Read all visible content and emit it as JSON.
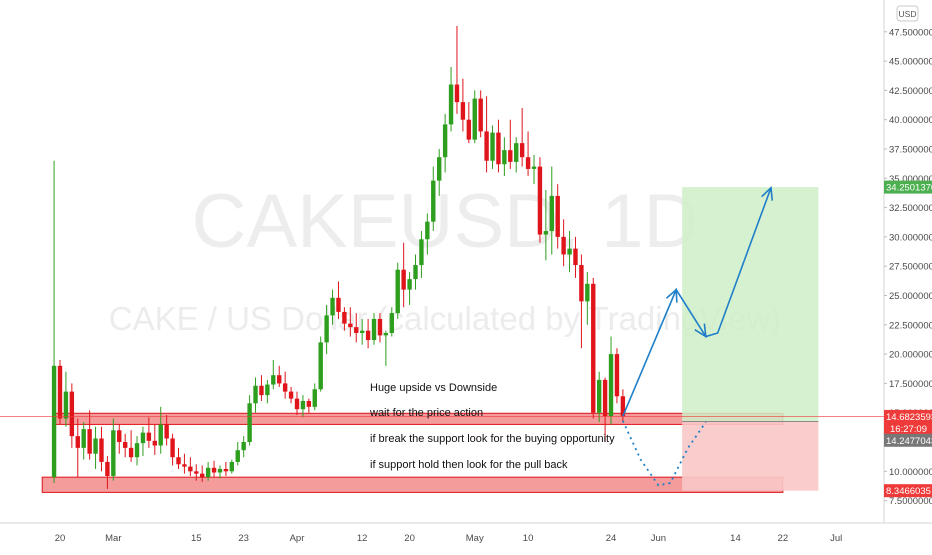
{
  "watermark": {
    "symbol": "CAKEUSD, 1D",
    "description": "CAKE / US Dollar (calculated by TradingView)"
  },
  "currency_button": "USD",
  "annotations": [
    "Huge upside vs Downside",
    "wait for the price action",
    "if break the support look for the buying opportunity",
    "if support hold then look for the pull back"
  ],
  "price_labels": {
    "target": "34.2501370",
    "last_price": "14.6823593",
    "countdown": "16:27:09",
    "entry": "14.2477043",
    "stop": "8.3466035"
  },
  "colors": {
    "up": "#2e9e1e",
    "down": "#e0141b",
    "zone_fill": "#f28a8a",
    "zone_stroke": "#e0141b",
    "profit": "#cfeec8",
    "loss": "#f9c8c8",
    "arrow": "#1f7fc8",
    "last_price_label": "#ef3a3a"
  },
  "chart_data": {
    "type": "candlestick",
    "title": "",
    "xlabel": "",
    "ylabel": "",
    "ylim": [
      6.5,
      49
    ],
    "xlim": [
      "2021-02-13",
      "2021-07-01"
    ],
    "yticks": [
      "47.5000000",
      "45.0000000",
      "42.5000000",
      "40.0000000",
      "37.5000000",
      "35.0000000",
      "32.5000000",
      "30.0000000",
      "27.5000000",
      "25.0000000",
      "22.5000000",
      "20.0000000",
      "17.5000000",
      "15.0000000",
      "12.5000000",
      "10.0000000",
      "7.5000000"
    ],
    "xticks": [
      {
        "date": "2021-02-20",
        "label": "20"
      },
      {
        "date": "2021-03-01",
        "label": "Mar"
      },
      {
        "date": "2021-03-15",
        "label": "15"
      },
      {
        "date": "2021-03-23",
        "label": "23"
      },
      {
        "date": "2021-04-01",
        "label": "Apr"
      },
      {
        "date": "2021-04-12",
        "label": "12"
      },
      {
        "date": "2021-04-20",
        "label": "20"
      },
      {
        "date": "2021-05-01",
        "label": "May"
      },
      {
        "date": "2021-05-10",
        "label": "10"
      },
      {
        "date": "2021-05-24",
        "label": "24"
      },
      {
        "date": "2021-06-01",
        "label": "Jun"
      },
      {
        "date": "2021-06-14",
        "label": "14"
      },
      {
        "date": "2021-06-22",
        "label": "22"
      },
      {
        "date": "2021-07-01",
        "label": "Jul"
      }
    ],
    "candles": [
      {
        "date": "2021-02-19",
        "o": 9.5,
        "h": 36.5,
        "l": 9.0,
        "c": 19.0
      },
      {
        "date": "2021-02-20",
        "o": 19.0,
        "h": 19.5,
        "l": 14.0,
        "c": 14.5
      },
      {
        "date": "2021-02-21",
        "o": 14.5,
        "h": 18.5,
        "l": 13.8,
        "c": 16.8
      },
      {
        "date": "2021-02-22",
        "o": 16.8,
        "h": 17.5,
        "l": 12.0,
        "c": 13.0
      },
      {
        "date": "2021-02-23",
        "o": 13.0,
        "h": 14.5,
        "l": 9.5,
        "c": 12.0
      },
      {
        "date": "2021-02-24",
        "o": 12.0,
        "h": 14.2,
        "l": 11.0,
        "c": 13.6
      },
      {
        "date": "2021-02-25",
        "o": 13.6,
        "h": 15.2,
        "l": 11.0,
        "c": 11.5
      },
      {
        "date": "2021-02-26",
        "o": 11.5,
        "h": 13.8,
        "l": 10.2,
        "c": 12.8
      },
      {
        "date": "2021-02-27",
        "o": 12.8,
        "h": 13.8,
        "l": 10.0,
        "c": 10.8
      },
      {
        "date": "2021-02-28",
        "o": 10.8,
        "h": 11.3,
        "l": 8.5,
        "c": 9.6
      },
      {
        "date": "2021-03-01",
        "o": 9.6,
        "h": 14.5,
        "l": 9.2,
        "c": 13.5
      },
      {
        "date": "2021-03-02",
        "o": 13.5,
        "h": 14.0,
        "l": 11.5,
        "c": 12.5
      },
      {
        "date": "2021-03-03",
        "o": 12.5,
        "h": 13.2,
        "l": 11.2,
        "c": 12.0
      },
      {
        "date": "2021-03-04",
        "o": 12.0,
        "h": 13.5,
        "l": 10.8,
        "c": 11.2
      },
      {
        "date": "2021-03-05",
        "o": 11.2,
        "h": 13.0,
        "l": 10.5,
        "c": 12.4
      },
      {
        "date": "2021-03-06",
        "o": 12.4,
        "h": 13.8,
        "l": 11.3,
        "c": 13.3
      },
      {
        "date": "2021-03-07",
        "o": 13.3,
        "h": 14.6,
        "l": 12.0,
        "c": 12.6
      },
      {
        "date": "2021-03-08",
        "o": 12.6,
        "h": 14.0,
        "l": 11.4,
        "c": 12.2
      },
      {
        "date": "2021-03-09",
        "o": 12.2,
        "h": 15.5,
        "l": 11.5,
        "c": 14.0
      },
      {
        "date": "2021-03-10",
        "o": 14.0,
        "h": 14.8,
        "l": 12.2,
        "c": 12.8
      },
      {
        "date": "2021-03-11",
        "o": 12.8,
        "h": 13.2,
        "l": 10.5,
        "c": 11.2
      },
      {
        "date": "2021-03-12",
        "o": 11.2,
        "h": 12.0,
        "l": 10.2,
        "c": 10.6
      },
      {
        "date": "2021-03-13",
        "o": 10.6,
        "h": 11.5,
        "l": 9.8,
        "c": 10.4
      },
      {
        "date": "2021-03-14",
        "o": 10.4,
        "h": 11.2,
        "l": 9.6,
        "c": 10.0
      },
      {
        "date": "2021-03-15",
        "o": 10.0,
        "h": 10.6,
        "l": 9.2,
        "c": 9.8
      },
      {
        "date": "2021-03-16",
        "o": 9.8,
        "h": 10.5,
        "l": 9.1,
        "c": 9.5
      },
      {
        "date": "2021-03-17",
        "o": 9.5,
        "h": 10.8,
        "l": 9.2,
        "c": 10.3
      },
      {
        "date": "2021-03-18",
        "o": 10.3,
        "h": 10.9,
        "l": 9.5,
        "c": 9.9
      },
      {
        "date": "2021-03-19",
        "o": 9.9,
        "h": 10.5,
        "l": 9.4,
        "c": 10.2
      },
      {
        "date": "2021-03-20",
        "o": 10.2,
        "h": 10.8,
        "l": 9.6,
        "c": 10.0
      },
      {
        "date": "2021-03-21",
        "o": 10.0,
        "h": 11.0,
        "l": 9.8,
        "c": 10.8
      },
      {
        "date": "2021-03-22",
        "o": 10.8,
        "h": 12.5,
        "l": 10.5,
        "c": 11.8
      },
      {
        "date": "2021-03-23",
        "o": 11.8,
        "h": 13.0,
        "l": 11.2,
        "c": 12.5
      },
      {
        "date": "2021-03-24",
        "o": 12.5,
        "h": 16.5,
        "l": 12.2,
        "c": 15.8
      },
      {
        "date": "2021-03-25",
        "o": 15.8,
        "h": 18.0,
        "l": 15.0,
        "c": 17.3
      },
      {
        "date": "2021-03-26",
        "o": 17.3,
        "h": 18.2,
        "l": 16.0,
        "c": 16.5
      },
      {
        "date": "2021-03-27",
        "o": 16.5,
        "h": 17.8,
        "l": 15.8,
        "c": 17.4
      },
      {
        "date": "2021-03-28",
        "o": 17.4,
        "h": 19.5,
        "l": 17.0,
        "c": 18.2
      },
      {
        "date": "2021-03-29",
        "o": 18.2,
        "h": 19.0,
        "l": 17.2,
        "c": 17.5
      },
      {
        "date": "2021-03-30",
        "o": 17.5,
        "h": 18.5,
        "l": 16.2,
        "c": 16.8
      },
      {
        "date": "2021-03-31",
        "o": 16.8,
        "h": 17.2,
        "l": 15.8,
        "c": 16.2
      },
      {
        "date": "2021-04-01",
        "o": 16.2,
        "h": 16.8,
        "l": 14.8,
        "c": 15.3
      },
      {
        "date": "2021-04-02",
        "o": 15.3,
        "h": 16.5,
        "l": 14.6,
        "c": 16.0
      },
      {
        "date": "2021-04-03",
        "o": 16.0,
        "h": 16.2,
        "l": 15.0,
        "c": 15.5
      },
      {
        "date": "2021-04-04",
        "o": 15.5,
        "h": 17.5,
        "l": 15.2,
        "c": 17.0
      },
      {
        "date": "2021-04-05",
        "o": 17.0,
        "h": 21.5,
        "l": 16.8,
        "c": 21.0
      },
      {
        "date": "2021-04-06",
        "o": 21.0,
        "h": 24.2,
        "l": 20.0,
        "c": 23.3
      },
      {
        "date": "2021-04-07",
        "o": 23.3,
        "h": 25.5,
        "l": 22.5,
        "c": 24.8
      },
      {
        "date": "2021-04-08",
        "o": 24.8,
        "h": 26.2,
        "l": 23.0,
        "c": 23.6
      },
      {
        "date": "2021-04-09",
        "o": 23.6,
        "h": 24.0,
        "l": 22.0,
        "c": 22.6
      },
      {
        "date": "2021-04-10",
        "o": 22.6,
        "h": 24.0,
        "l": 21.5,
        "c": 22.3
      },
      {
        "date": "2021-04-11",
        "o": 22.3,
        "h": 23.5,
        "l": 21.0,
        "c": 21.8
      },
      {
        "date": "2021-04-12",
        "o": 21.8,
        "h": 23.0,
        "l": 20.8,
        "c": 22.0
      },
      {
        "date": "2021-04-13",
        "o": 22.0,
        "h": 23.0,
        "l": 20.5,
        "c": 21.2
      },
      {
        "date": "2021-04-14",
        "o": 21.2,
        "h": 23.5,
        "l": 20.8,
        "c": 23.0
      },
      {
        "date": "2021-04-15",
        "o": 23.0,
        "h": 23.5,
        "l": 21.0,
        "c": 21.6
      },
      {
        "date": "2021-04-16",
        "o": 21.6,
        "h": 22.0,
        "l": 19.0,
        "c": 21.8
      },
      {
        "date": "2021-04-17",
        "o": 21.8,
        "h": 24.0,
        "l": 21.5,
        "c": 23.5
      },
      {
        "date": "2021-04-18",
        "o": 23.5,
        "h": 27.8,
        "l": 23.0,
        "c": 27.2
      },
      {
        "date": "2021-04-19",
        "o": 27.2,
        "h": 29.5,
        "l": 24.0,
        "c": 25.5
      },
      {
        "date": "2021-04-20",
        "o": 25.5,
        "h": 27.0,
        "l": 24.2,
        "c": 26.4
      },
      {
        "date": "2021-04-21",
        "o": 26.4,
        "h": 28.5,
        "l": 25.5,
        "c": 27.6
      },
      {
        "date": "2021-04-22",
        "o": 27.6,
        "h": 30.5,
        "l": 26.5,
        "c": 29.8
      },
      {
        "date": "2021-04-23",
        "o": 29.8,
        "h": 32.0,
        "l": 28.5,
        "c": 31.3
      },
      {
        "date": "2021-04-24",
        "o": 31.3,
        "h": 36.0,
        "l": 30.5,
        "c": 34.8
      },
      {
        "date": "2021-04-25",
        "o": 34.8,
        "h": 37.5,
        "l": 33.5,
        "c": 36.8
      },
      {
        "date": "2021-04-26",
        "o": 36.8,
        "h": 40.5,
        "l": 35.5,
        "c": 39.6
      },
      {
        "date": "2021-04-27",
        "o": 39.6,
        "h": 44.5,
        "l": 39.0,
        "c": 43.0
      },
      {
        "date": "2021-04-28",
        "o": 43.0,
        "h": 48.0,
        "l": 40.5,
        "c": 41.5
      },
      {
        "date": "2021-04-29",
        "o": 41.5,
        "h": 43.5,
        "l": 39.0,
        "c": 40.0
      },
      {
        "date": "2021-04-30",
        "o": 40.0,
        "h": 41.5,
        "l": 38.0,
        "c": 38.3
      },
      {
        "date": "2021-05-01",
        "o": 38.3,
        "h": 42.5,
        "l": 38.0,
        "c": 41.8
      },
      {
        "date": "2021-05-02",
        "o": 41.8,
        "h": 42.5,
        "l": 38.5,
        "c": 39.0
      },
      {
        "date": "2021-05-03",
        "o": 39.0,
        "h": 42.0,
        "l": 35.5,
        "c": 36.5
      },
      {
        "date": "2021-05-04",
        "o": 36.5,
        "h": 39.5,
        "l": 35.8,
        "c": 38.9
      },
      {
        "date": "2021-05-05",
        "o": 38.9,
        "h": 40.0,
        "l": 35.5,
        "c": 36.2
      },
      {
        "date": "2021-05-06",
        "o": 36.2,
        "h": 38.5,
        "l": 35.2,
        "c": 37.4
      },
      {
        "date": "2021-05-07",
        "o": 37.4,
        "h": 40.0,
        "l": 35.8,
        "c": 36.4
      },
      {
        "date": "2021-05-08",
        "o": 36.4,
        "h": 38.5,
        "l": 35.5,
        "c": 38.0
      },
      {
        "date": "2021-05-09",
        "o": 38.0,
        "h": 41.0,
        "l": 36.0,
        "c": 36.8
      },
      {
        "date": "2021-05-10",
        "o": 36.8,
        "h": 39.0,
        "l": 35.2,
        "c": 35.8
      },
      {
        "date": "2021-05-11",
        "o": 35.8,
        "h": 37.0,
        "l": 34.5,
        "c": 36.0
      },
      {
        "date": "2021-05-12",
        "o": 36.0,
        "h": 36.8,
        "l": 29.5,
        "c": 30.2
      },
      {
        "date": "2021-05-13",
        "o": 30.2,
        "h": 34.0,
        "l": 28.0,
        "c": 30.5
      },
      {
        "date": "2021-05-14",
        "o": 30.5,
        "h": 36.0,
        "l": 28.5,
        "c": 33.5
      },
      {
        "date": "2021-05-15",
        "o": 33.5,
        "h": 34.5,
        "l": 29.0,
        "c": 30.0
      },
      {
        "date": "2021-05-16",
        "o": 30.0,
        "h": 31.5,
        "l": 27.5,
        "c": 28.5
      },
      {
        "date": "2021-05-17",
        "o": 28.5,
        "h": 30.5,
        "l": 27.0,
        "c": 29.0
      },
      {
        "date": "2021-05-18",
        "o": 29.0,
        "h": 30.0,
        "l": 26.5,
        "c": 27.6
      },
      {
        "date": "2021-05-19",
        "o": 27.6,
        "h": 28.5,
        "l": 20.5,
        "c": 24.5
      },
      {
        "date": "2021-05-20",
        "o": 24.5,
        "h": 27.0,
        "l": 22.5,
        "c": 26.0
      },
      {
        "date": "2021-05-21",
        "o": 26.0,
        "h": 26.5,
        "l": 14.5,
        "c": 15.0
      },
      {
        "date": "2021-05-22",
        "o": 15.0,
        "h": 18.5,
        "l": 14.2,
        "c": 17.8
      },
      {
        "date": "2021-05-23",
        "o": 17.8,
        "h": 18.0,
        "l": 12.5,
        "c": 14.7
      },
      {
        "date": "2021-05-24",
        "o": 14.7,
        "h": 21.5,
        "l": 14.0,
        "c": 20.0
      },
      {
        "date": "2021-05-25",
        "o": 20.0,
        "h": 20.5,
        "l": 15.8,
        "c": 16.4
      },
      {
        "date": "2021-05-26",
        "o": 16.4,
        "h": 17.0,
        "l": 14.2,
        "c": 14.68
      }
    ],
    "horizontal_zones": [
      {
        "name": "resistance-support zone",
        "from_date": "2021-02-19",
        "to_date": "2021-06-22",
        "y0": 14.0,
        "y1": 14.95
      },
      {
        "name": "lower support zone",
        "from_date": "2021-02-17",
        "to_date": "2021-06-22",
        "y0": 8.2,
        "y1": 9.5
      }
    ],
    "position_tool": {
      "from_date": "2021-06-05",
      "to_date": "2021-06-28",
      "entry": 14.2477043,
      "target": 34.250137,
      "stop": 8.3466035
    },
    "projection_path": [
      {
        "date": "2021-05-26",
        "y": 14.7
      },
      {
        "date": "2021-06-04",
        "y": 25.5
      },
      {
        "date": "2021-06-09",
        "y": 21.5
      },
      {
        "date": "2021-06-11",
        "y": 21.8
      },
      {
        "date": "2021-06-20",
        "y": 34.2
      }
    ],
    "pullback_path": [
      {
        "date": "2021-05-26",
        "y": 14.3
      },
      {
        "date": "2021-05-29",
        "y": 11.0
      },
      {
        "date": "2021-06-01",
        "y": 8.8
      },
      {
        "date": "2021-06-03",
        "y": 9.0
      },
      {
        "date": "2021-06-06",
        "y": 12.0
      },
      {
        "date": "2021-06-09",
        "y": 14.2
      }
    ],
    "grid": false,
    "last_price": 14.6823593
  }
}
